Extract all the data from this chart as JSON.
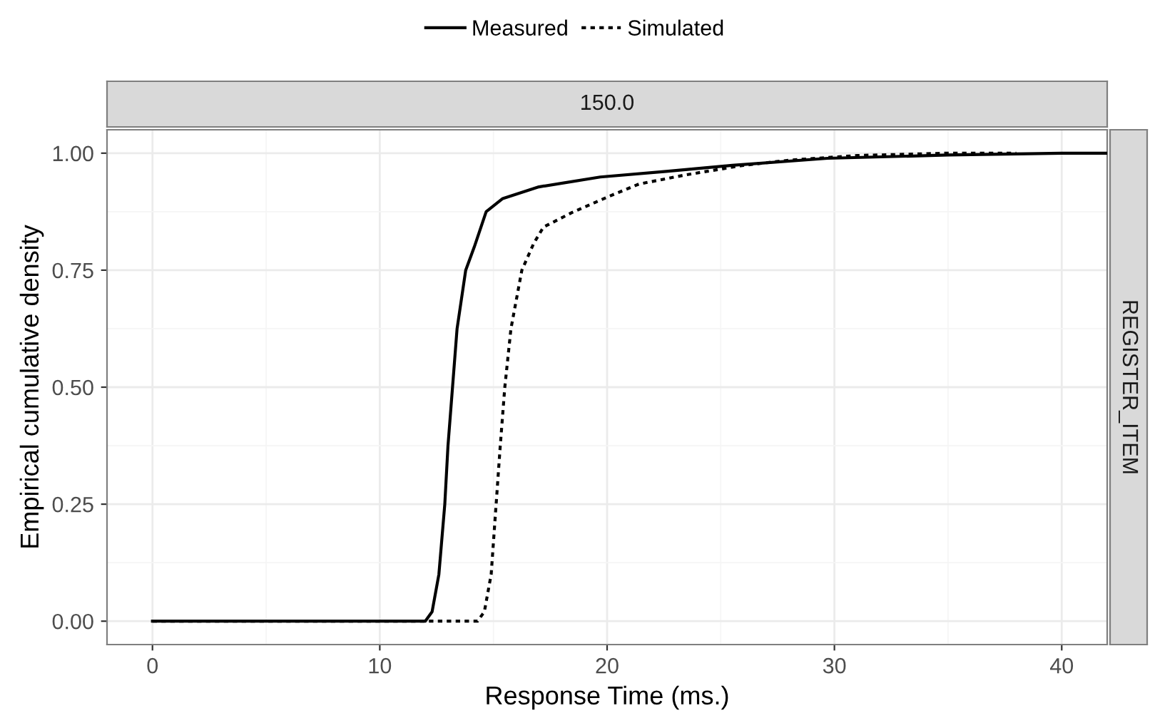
{
  "chart_data": {
    "type": "line",
    "xlabel": "Response Time (ms.)",
    "ylabel": "Empirical cumulative density",
    "annotations": [
      "150.0",
      "REGISTER_ITEM"
    ],
    "xlim": [
      -2,
      42
    ],
    "xticks": [
      0,
      10,
      20,
      30,
      40
    ],
    "ylim": [
      -0.05,
      1.05
    ],
    "yticks": [
      {
        "value": 0,
        "label": "0.00"
      },
      {
        "value": 0.25,
        "label": "0.25"
      },
      {
        "value": 0.5,
        "label": "0.50"
      },
      {
        "value": 0.75,
        "label": "0.75"
      },
      {
        "value": 1,
        "label": "1.00"
      }
    ],
    "grid": true,
    "legend": "top",
    "series": [
      {
        "name": "Measured",
        "color": "#000000",
        "line_style": "solid",
        "x": [
          0,
          12.0,
          12.3,
          12.6,
          12.86,
          13.0,
          13.2,
          13.4,
          13.78,
          14.16,
          14.68,
          15.41,
          17.0,
          19.7,
          22.6,
          25.5,
          29.7,
          35,
          40,
          42
        ],
        "values": [
          0,
          0,
          0.02,
          0.1,
          0.25,
          0.375,
          0.5,
          0.625,
          0.75,
          0.8,
          0.875,
          0.903,
          0.928,
          0.949,
          0.961,
          0.974,
          0.989,
          0.996,
          1,
          1
        ]
      },
      {
        "name": "Simulated",
        "color": "#000000",
        "line_style": "dotted",
        "x": [
          0,
          14.3,
          14.6,
          14.9,
          15.06,
          15.3,
          15.5,
          15.77,
          16.25,
          16.77,
          17.2,
          18.45,
          20.1,
          21.4,
          23.5,
          26,
          28,
          31,
          35,
          38
        ],
        "values": [
          0,
          0,
          0.02,
          0.1,
          0.21,
          0.375,
          0.5,
          0.625,
          0.75,
          0.807,
          0.842,
          0.873,
          0.908,
          0.934,
          0.954,
          0.974,
          0.985,
          0.995,
          1,
          1
        ]
      }
    ]
  }
}
